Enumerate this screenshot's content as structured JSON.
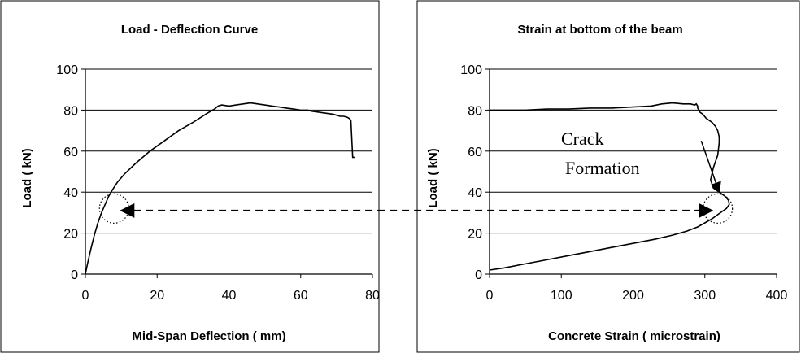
{
  "chart_data": [
    {
      "type": "line",
      "title": "Load - Deflection Curve",
      "xlabel": "Mid-Span Deflection ( mm)",
      "ylabel": "Load ( kN)",
      "xlim": [
        0,
        80
      ],
      "ylim": [
        0,
        100
      ],
      "xticks": [
        "0",
        "20",
        "40",
        "60",
        "80"
      ],
      "yticks": [
        "0",
        "20",
        "40",
        "60",
        "80",
        "100"
      ],
      "grid": "horizontal",
      "series": [
        {
          "color": "#000000",
          "x": [
            0,
            0.6,
            1.5,
            2.5,
            3.5,
            4.5,
            5.5,
            6.5,
            7.5,
            9,
            11,
            14,
            18,
            22,
            26,
            30,
            34,
            36,
            37,
            38,
            40,
            42,
            44,
            46,
            48,
            50,
            52,
            54,
            56,
            58,
            60,
            62,
            63,
            65,
            67,
            69,
            70,
            71,
            72,
            73,
            73.5,
            74,
            74.5,
            75
          ],
          "y": [
            0,
            5,
            12,
            19,
            25,
            30,
            34,
            38,
            41,
            45,
            49,
            54,
            60,
            65,
            70,
            74,
            78.5,
            80.5,
            82,
            82.5,
            82,
            82.5,
            83,
            83.5,
            83,
            82.5,
            82,
            81.5,
            81,
            80.5,
            80,
            80,
            79.5,
            79,
            78.5,
            78,
            77.5,
            77,
            77,
            76.5,
            76,
            75,
            57,
            57
          ]
        }
      ],
      "annotations": [
        {
          "type": "dotted-circle",
          "center": [
            8,
            32
          ]
        }
      ]
    },
    {
      "type": "line",
      "title": "Strain at bottom of the beam",
      "xlabel": "Concrete Strain ( microstrain)",
      "ylabel": "Load ( kN)",
      "xlim": [
        0,
        400
      ],
      "ylim": [
        0,
        100
      ],
      "xticks": [
        "0",
        "100",
        "200",
        "300",
        "400"
      ],
      "yticks": [
        "0",
        "20",
        "40",
        "60",
        "80",
        "100"
      ],
      "grid": "horizontal",
      "series": [
        {
          "color": "#000000",
          "x": [
            0,
            20,
            50,
            80,
            110,
            140,
            170,
            200,
            230,
            255,
            275,
            290,
            300,
            310,
            318,
            324,
            330,
            334,
            333,
            328,
            320,
            312,
            308,
            312,
            318,
            320,
            320,
            318,
            315,
            310,
            302,
            297,
            293,
            292,
            290,
            290,
            288,
            286,
            280,
            270,
            255,
            240,
            225,
            200,
            170,
            140,
            110,
            80,
            50,
            20,
            0
          ],
          "y": [
            2,
            3,
            5,
            7,
            9,
            11,
            13,
            15,
            17,
            19,
            21,
            23,
            25,
            27,
            29,
            30.5,
            32,
            34,
            36,
            38,
            40,
            42,
            46,
            52,
            58,
            64,
            67,
            70,
            72,
            74,
            76,
            78,
            79,
            80,
            81,
            82,
            83,
            82.5,
            83,
            83,
            83.5,
            83,
            82,
            81.5,
            81,
            81,
            80.5,
            80.5,
            80,
            80,
            80
          ]
        }
      ],
      "annotations": [
        {
          "type": "text",
          "lines": [
            "Crack",
            "Formation"
          ]
        },
        {
          "type": "arrow",
          "from": [
            295,
            65
          ],
          "to": [
            320,
            40
          ]
        },
        {
          "type": "dotted-circle",
          "center": [
            318,
            32
          ]
        }
      ]
    }
  ],
  "linking_arrow": {
    "style": "dashed",
    "heads": "both",
    "from_chart": 0,
    "from": [
      10,
      31
    ],
    "to_chart": 1,
    "to": [
      310,
      31
    ]
  }
}
